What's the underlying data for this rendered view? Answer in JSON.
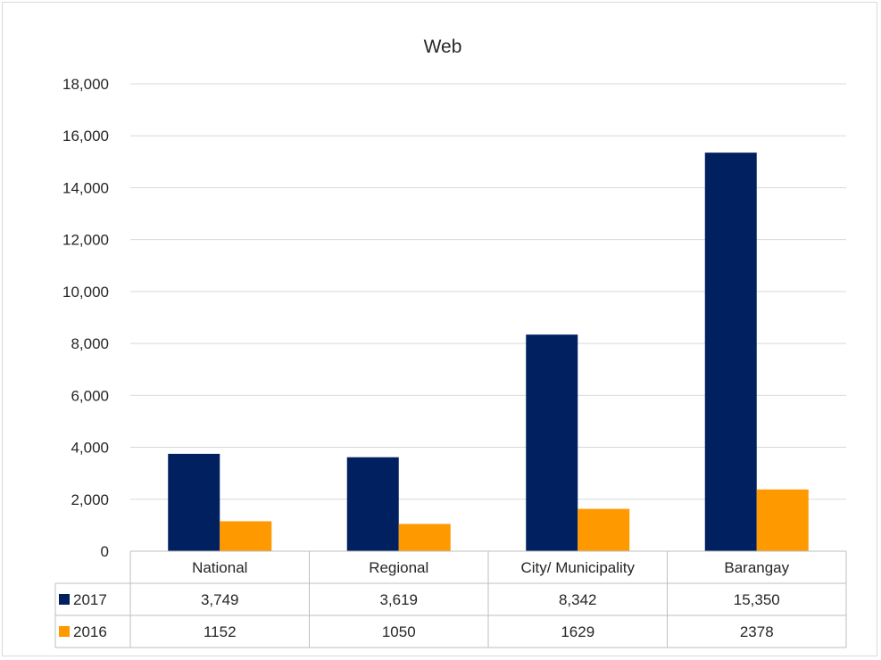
{
  "chart_data": {
    "type": "bar",
    "title": "Web",
    "categories": [
      "National",
      "Regional",
      "City/ Municipality",
      "Barangay"
    ],
    "series": [
      {
        "name": "2017",
        "values": [
          3749,
          3619,
          8342,
          15350
        ],
        "labels": [
          "3,749",
          "3,619",
          "8,342",
          "15,350"
        ],
        "color": "#002060"
      },
      {
        "name": "2016",
        "values": [
          1152,
          1050,
          1629,
          2378
        ],
        "labels": [
          "1152",
          "1050",
          "1629",
          "2378"
        ],
        "color": "#ff9900"
      }
    ],
    "ylim": [
      0,
      18000
    ],
    "yticks": [
      "0",
      "2,000",
      "4,000",
      "6,000",
      "8,000",
      "10,000",
      "12,000",
      "14,000",
      "16,000",
      "18,000"
    ],
    "grid": true,
    "legend": "data-table"
  }
}
